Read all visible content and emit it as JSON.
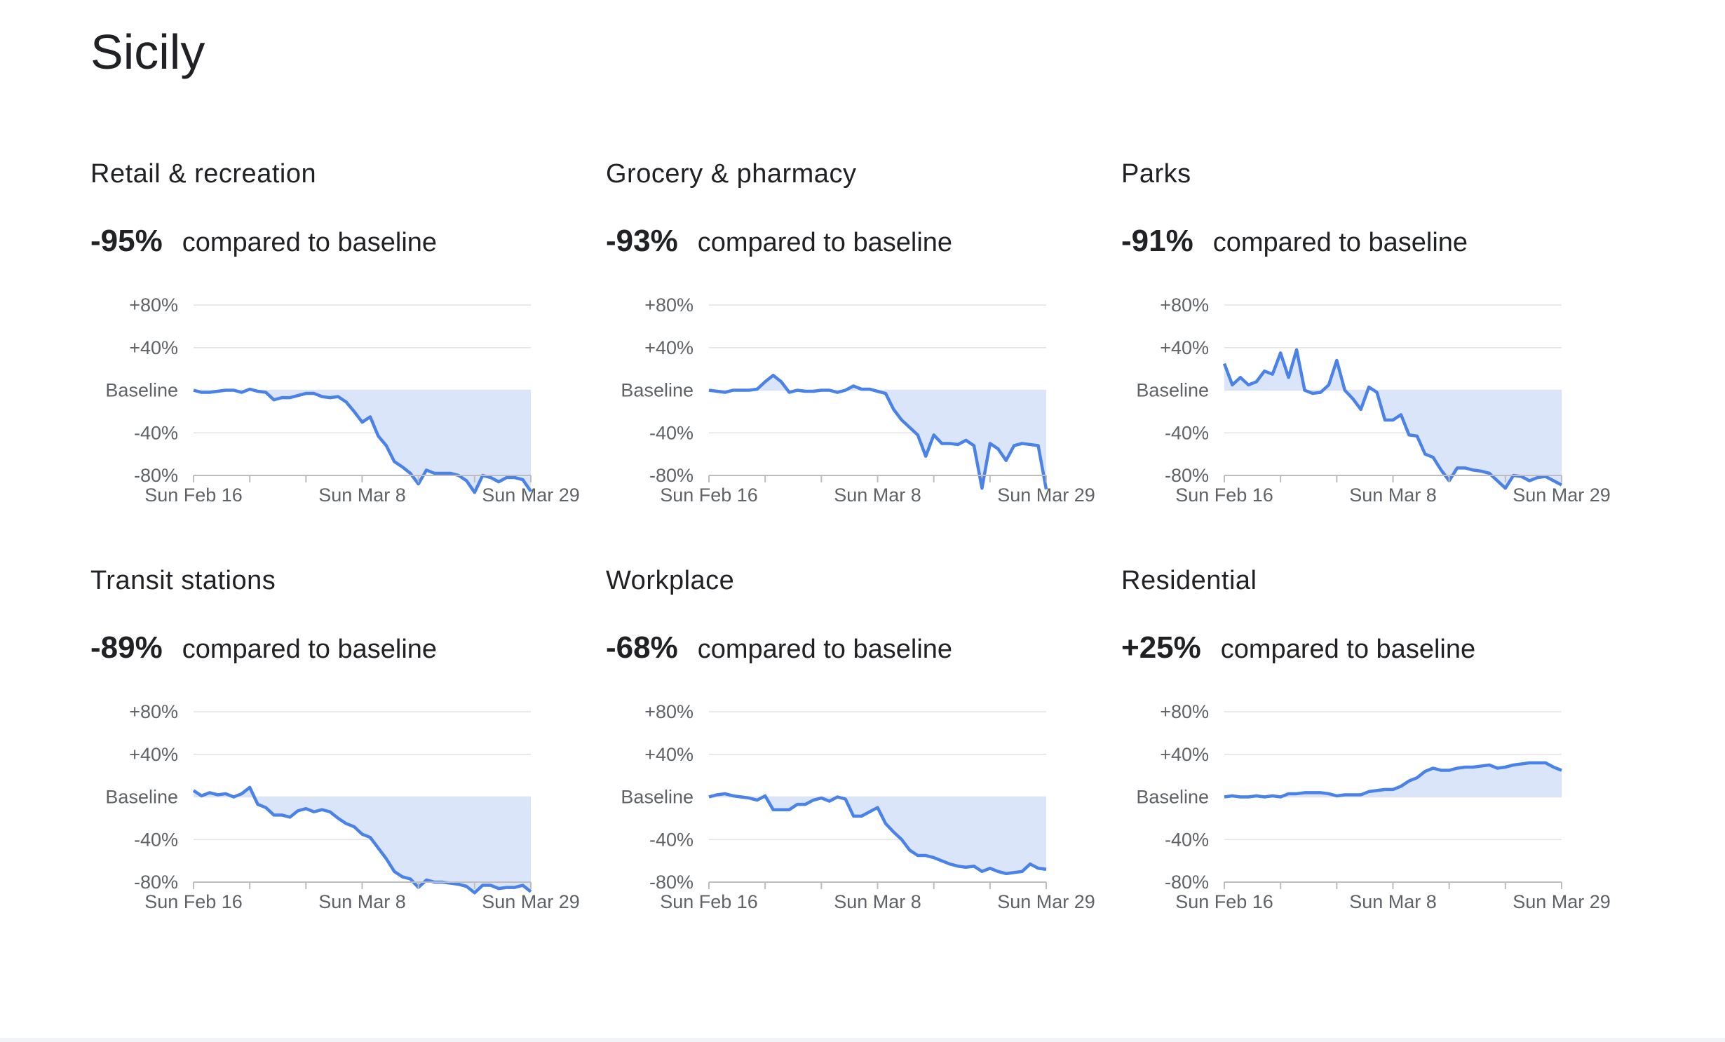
{
  "title": "Sicily",
  "chart_data": [
    {
      "type": "line",
      "title": "Retail & recreation",
      "summary": {
        "value": -95,
        "label": "-95%"
      },
      "summary_text": "compared to baseline",
      "categories": [
        "Sun Feb 16",
        null,
        null,
        null,
        null,
        null,
        null,
        null,
        null,
        null,
        null,
        null,
        null,
        null,
        null,
        null,
        null,
        null,
        null,
        null,
        null,
        "Sun Mar 8",
        null,
        null,
        null,
        null,
        null,
        null,
        null,
        null,
        null,
        null,
        null,
        null,
        null,
        null,
        null,
        null,
        null,
        null,
        null,
        null,
        "Sun Mar 29"
      ],
      "values": [
        0,
        -2,
        -2,
        -1,
        0,
        0,
        -2,
        1,
        -1,
        -2,
        -9,
        -7,
        -7,
        -5,
        -3,
        -3,
        -6,
        -7,
        -6,
        -11,
        -20,
        -30,
        -25,
        -43,
        -52,
        -67,
        -72,
        -78,
        -88,
        -75,
        -78,
        -78,
        -78,
        -80,
        -85,
        -96,
        -80,
        -82,
        -86,
        -82,
        -82,
        -84,
        -95
      ],
      "color": "#4a82e8",
      "fill_color": "#dbe5f9",
      "ylim": [
        -80,
        80
      ],
      "yticks": [
        {
          "value": 80,
          "label": "+80%"
        },
        {
          "value": 40,
          "label": "+40%"
        },
        {
          "value": 0,
          "label": "Baseline"
        },
        {
          "value": -40,
          "label": "-40%"
        },
        {
          "value": -80,
          "label": "-80%"
        }
      ],
      "grid": true
    },
    {
      "type": "line",
      "title": "Grocery & pharmacy",
      "summary": {
        "value": -93,
        "label": "-93%"
      },
      "summary_text": "compared to baseline",
      "categories": [
        "Sun Feb 16",
        null,
        null,
        null,
        null,
        null,
        null,
        null,
        null,
        null,
        null,
        null,
        null,
        null,
        null,
        null,
        null,
        null,
        null,
        null,
        null,
        "Sun Mar 8",
        null,
        null,
        null,
        null,
        null,
        null,
        null,
        null,
        null,
        null,
        null,
        null,
        null,
        null,
        null,
        null,
        null,
        null,
        null,
        null,
        "Sun Mar 29"
      ],
      "values": [
        0,
        -1,
        -2,
        0,
        0,
        0,
        1,
        8,
        14,
        8,
        -2,
        0,
        -1,
        -1,
        0,
        0,
        -2,
        0,
        4,
        1,
        1,
        -1,
        -3,
        -18,
        -28,
        -35,
        -42,
        -62,
        -42,
        -50,
        -50,
        -51,
        -47,
        -52,
        -92,
        -50,
        -55,
        -66,
        -52,
        -50,
        -51,
        -52,
        -93
      ],
      "color": "#4a82e8",
      "fill_color": "#dbe5f9",
      "ylim": [
        -80,
        80
      ],
      "yticks": [
        {
          "value": 80,
          "label": "+80%"
        },
        {
          "value": 40,
          "label": "+40%"
        },
        {
          "value": 0,
          "label": "Baseline"
        },
        {
          "value": -40,
          "label": "-40%"
        },
        {
          "value": -80,
          "label": "-80%"
        }
      ],
      "grid": true
    },
    {
      "type": "line",
      "title": "Parks",
      "summary": {
        "value": -91,
        "label": "-91%"
      },
      "summary_text": "compared to baseline",
      "categories": [
        "Sun Feb 16",
        null,
        null,
        null,
        null,
        null,
        null,
        null,
        null,
        null,
        null,
        null,
        null,
        null,
        null,
        null,
        null,
        null,
        null,
        null,
        null,
        "Sun Mar 8",
        null,
        null,
        null,
        null,
        null,
        null,
        null,
        null,
        null,
        null,
        null,
        null,
        null,
        null,
        null,
        null,
        null,
        null,
        null,
        null,
        "Sun Mar 29"
      ],
      "values": [
        25,
        5,
        12,
        5,
        8,
        18,
        15,
        35,
        12,
        38,
        0,
        -3,
        -2,
        5,
        28,
        0,
        -8,
        -18,
        3,
        -2,
        -28,
        -28,
        -23,
        -42,
        -43,
        -60,
        -63,
        -75,
        -85,
        -73,
        -73,
        -75,
        -76,
        -78,
        -85,
        -92,
        -80,
        -81,
        -85,
        -82,
        -81,
        -85,
        -89
      ],
      "color": "#4a82e8",
      "fill_color": "#dbe5f9",
      "ylim": [
        -80,
        80
      ],
      "yticks": [
        {
          "value": 80,
          "label": "+80%"
        },
        {
          "value": 40,
          "label": "+40%"
        },
        {
          "value": 0,
          "label": "Baseline"
        },
        {
          "value": -40,
          "label": "-40%"
        },
        {
          "value": -80,
          "label": "-80%"
        }
      ],
      "grid": true
    },
    {
      "type": "line",
      "title": "Transit stations",
      "summary": {
        "value": -89,
        "label": "-89%"
      },
      "summary_text": "compared to baseline",
      "categories": [
        "Sun Feb 16",
        null,
        null,
        null,
        null,
        null,
        null,
        null,
        null,
        null,
        null,
        null,
        null,
        null,
        null,
        null,
        null,
        null,
        null,
        null,
        null,
        "Sun Mar 8",
        null,
        null,
        null,
        null,
        null,
        null,
        null,
        null,
        null,
        null,
        null,
        null,
        null,
        null,
        null,
        null,
        null,
        null,
        null,
        null,
        "Sun Mar 29"
      ],
      "values": [
        6,
        1,
        4,
        2,
        3,
        0,
        3,
        9,
        -7,
        -10,
        -17,
        -17,
        -19,
        -13,
        -11,
        -14,
        -12,
        -14,
        -20,
        -25,
        -28,
        -35,
        -38,
        -48,
        -58,
        -70,
        -75,
        -77,
        -85,
        -78,
        -80,
        -80,
        -81,
        -82,
        -84,
        -90,
        -83,
        -83,
        -86,
        -85,
        -85,
        -83,
        -89
      ],
      "color": "#4a82e8",
      "fill_color": "#dbe5f9",
      "ylim": [
        -80,
        80
      ],
      "yticks": [
        {
          "value": 80,
          "label": "+80%"
        },
        {
          "value": 40,
          "label": "+40%"
        },
        {
          "value": 0,
          "label": "Baseline"
        },
        {
          "value": -40,
          "label": "-40%"
        },
        {
          "value": -80,
          "label": "-80%"
        }
      ],
      "grid": true
    },
    {
      "type": "line",
      "title": "Workplace",
      "summary": {
        "value": -68,
        "label": "-68%"
      },
      "summary_text": "compared to baseline",
      "categories": [
        "Sun Feb 16",
        null,
        null,
        null,
        null,
        null,
        null,
        null,
        null,
        null,
        null,
        null,
        null,
        null,
        null,
        null,
        null,
        null,
        null,
        null,
        null,
        "Sun Mar 8",
        null,
        null,
        null,
        null,
        null,
        null,
        null,
        null,
        null,
        null,
        null,
        null,
        null,
        null,
        null,
        null,
        null,
        null,
        null,
        null,
        "Sun Mar 29"
      ],
      "values": [
        0,
        2,
        3,
        1,
        0,
        -1,
        -3,
        1,
        -12,
        -12,
        -12,
        -7,
        -7,
        -3,
        -1,
        -4,
        0,
        -2,
        -18,
        -18,
        -14,
        -10,
        -25,
        -33,
        -40,
        -50,
        -55,
        -55,
        -57,
        -60,
        -63,
        -65,
        -66,
        -65,
        -70,
        -67,
        -70,
        -72,
        -71,
        -70,
        -63,
        -67,
        -68
      ],
      "color": "#4a82e8",
      "fill_color": "#dbe5f9",
      "ylim": [
        -80,
        80
      ],
      "yticks": [
        {
          "value": 80,
          "label": "+80%"
        },
        {
          "value": 40,
          "label": "+40%"
        },
        {
          "value": 0,
          "label": "Baseline"
        },
        {
          "value": -40,
          "label": "-40%"
        },
        {
          "value": -80,
          "label": "-80%"
        }
      ],
      "grid": true
    },
    {
      "type": "line",
      "title": "Residential",
      "summary": {
        "value": 25,
        "label": "+25%"
      },
      "summary_text": "compared to baseline",
      "categories": [
        "Sun Feb 16",
        null,
        null,
        null,
        null,
        null,
        null,
        null,
        null,
        null,
        null,
        null,
        null,
        null,
        null,
        null,
        null,
        null,
        null,
        null,
        null,
        "Sun Mar 8",
        null,
        null,
        null,
        null,
        null,
        null,
        null,
        null,
        null,
        null,
        null,
        null,
        null,
        null,
        null,
        null,
        null,
        null,
        null,
        null,
        "Sun Mar 29"
      ],
      "values": [
        0,
        1,
        0,
        0,
        1,
        0,
        1,
        0,
        3,
        3,
        4,
        4,
        4,
        3,
        1,
        2,
        2,
        2,
        5,
        6,
        7,
        7,
        10,
        15,
        18,
        24,
        27,
        25,
        25,
        27,
        28,
        28,
        29,
        30,
        27,
        28,
        30,
        31,
        32,
        32,
        32,
        28,
        25
      ],
      "color": "#4a82e8",
      "fill_color": "#dbe5f9",
      "ylim": [
        -80,
        80
      ],
      "yticks": [
        {
          "value": 80,
          "label": "+80%"
        },
        {
          "value": 40,
          "label": "+40%"
        },
        {
          "value": 0,
          "label": "Baseline"
        },
        {
          "value": -40,
          "label": "-40%"
        },
        {
          "value": -80,
          "label": "-80%"
        }
      ],
      "grid": true
    }
  ]
}
